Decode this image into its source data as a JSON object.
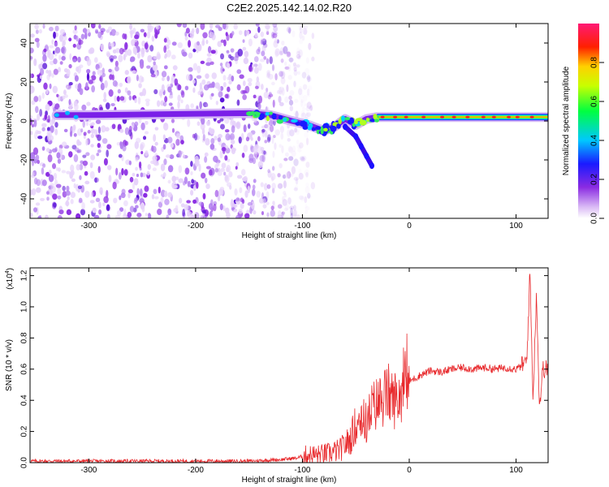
{
  "chart_data": [
    {
      "type": "heatmap",
      "title": "C2E2.2025.142.14.02.R20",
      "xlabel": "Height of straight line (km)",
      "ylabel": "Frequency (Hz)",
      "xlim": [
        -355,
        130
      ],
      "ylim": [
        -50,
        50
      ],
      "xticks": [
        -300,
        -200,
        -100,
        0,
        100
      ],
      "xtick_labels": [
        "-300",
        "-200",
        "-100",
        "0",
        "100"
      ],
      "yticks": [
        -40,
        -20,
        0,
        20,
        40
      ],
      "ytick_labels": [
        "-40",
        "-20",
        "0",
        "20",
        "40"
      ],
      "colorbar": {
        "label": "Normalized spectral amplitude",
        "range": [
          0,
          1
        ],
        "ticks": [
          0.0,
          0.2,
          0.4,
          0.6,
          0.8
        ],
        "tick_labels": [
          "0.0",
          "0.2",
          "0.4",
          "0.6",
          "0.8"
        ],
        "colors": [
          "#ffffff",
          "#a020f0",
          "#0000ff",
          "#00ffff",
          "#00ff00",
          "#ffff00",
          "#ff0000",
          "#ff00aa"
        ]
      },
      "features": {
        "noise_region_x": [
          -355,
          -100
        ],
        "track": [
          [
            -330,
            3
          ],
          [
            -300,
            3
          ],
          [
            -150,
            4
          ],
          [
            -130,
            3
          ],
          [
            -110,
            0
          ],
          [
            -95,
            -2
          ],
          [
            -80,
            -5
          ],
          [
            -70,
            -3
          ],
          [
            -60,
            1
          ],
          [
            -50,
            -2
          ],
          [
            -40,
            1
          ],
          [
            -30,
            2
          ],
          [
            0,
            2
          ],
          [
            50,
            2
          ],
          [
            100,
            2
          ],
          [
            130,
            2
          ]
        ],
        "branch": [
          [
            -60,
            -3
          ],
          [
            -50,
            -8
          ],
          [
            -45,
            -13
          ],
          [
            -40,
            -18
          ],
          [
            -35,
            -23
          ]
        ],
        "peak_band_x": [
          -30,
          120
        ]
      }
    },
    {
      "type": "line",
      "title": "",
      "xlabel": "Height of straight line (km)",
      "ylabel": "SNR (10 * v/v)",
      "scale_label": "(x10",
      "scale_exponent": "4",
      "scale_suffix": ")",
      "xlim": [
        -355,
        130
      ],
      "ylim": [
        0,
        1.25
      ],
      "xticks": [
        -300,
        -200,
        -100,
        0,
        100
      ],
      "xtick_labels": [
        "-300",
        "-200",
        "-100",
        "0",
        "100"
      ],
      "yticks": [
        0.0,
        0.2,
        0.4,
        0.6,
        0.8,
        1.0,
        1.2
      ],
      "ytick_labels": [
        "0.0",
        "0.2",
        "0.4",
        "0.6",
        "0.8",
        "1.0",
        "1.2"
      ],
      "color": "#e8292c",
      "series": [
        {
          "x": [
            -355,
            -300,
            -250,
            -200,
            -150,
            -120,
            -105,
            -95,
            -85,
            -75,
            -65,
            -55,
            -50,
            -45,
            -40,
            -35,
            -30,
            -25,
            -20,
            -15,
            -10,
            -5,
            0,
            10,
            20,
            30,
            40,
            50,
            60,
            70,
            80,
            90,
            100,
            105,
            110,
            113,
            116,
            119,
            122,
            125,
            130
          ],
          "y": [
            0.01,
            0.01,
            0.01,
            0.01,
            0.01,
            0.02,
            0.03,
            0.05,
            0.05,
            0.06,
            0.08,
            0.15,
            0.25,
            0.3,
            0.25,
            0.35,
            0.38,
            0.4,
            0.45,
            0.4,
            0.42,
            0.48,
            0.52,
            0.56,
            0.59,
            0.58,
            0.6,
            0.61,
            0.6,
            0.61,
            0.6,
            0.61,
            0.6,
            0.62,
            0.65,
            1.22,
            0.4,
            1.1,
            0.35,
            0.6,
            0.6
          ]
        }
      ]
    }
  ]
}
